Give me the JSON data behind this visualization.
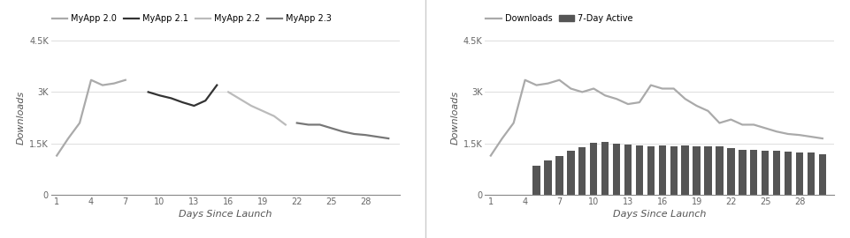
{
  "left": {
    "xlabel": "Days Since Launch",
    "ylabel": "Downloads",
    "ylim": [
      0,
      4500
    ],
    "yticks": [
      0,
      1500,
      3000,
      4500
    ],
    "ytick_labels": [
      "0",
      "1.5K",
      "3K",
      "4.5K"
    ],
    "xticks": [
      1,
      4,
      7,
      10,
      13,
      16,
      19,
      22,
      25,
      28
    ],
    "series": [
      {
        "label": "MyApp 2.0",
        "color": "#aaaaaa",
        "x": [
          1,
          2,
          3,
          4,
          5,
          6,
          7
        ],
        "y": [
          1150,
          1650,
          2100,
          3350,
          3200,
          3250,
          3350
        ]
      },
      {
        "label": "MyApp 2.1",
        "color": "#333333",
        "x": [
          9,
          10,
          11,
          12,
          13,
          14,
          15
        ],
        "y": [
          3000,
          2900,
          2820,
          2700,
          2600,
          2750,
          3200
        ]
      },
      {
        "label": "MyApp 2.2",
        "color": "#bbbbbb",
        "x": [
          16,
          17,
          18,
          19,
          20,
          21
        ],
        "y": [
          3000,
          2800,
          2600,
          2450,
          2300,
          2050
        ]
      },
      {
        "label": "MyApp 2.3",
        "color": "#777777",
        "x": [
          22,
          23,
          24,
          25,
          26,
          27,
          28,
          29,
          30
        ],
        "y": [
          2100,
          2050,
          2050,
          1950,
          1850,
          1780,
          1750,
          1700,
          1650
        ]
      }
    ]
  },
  "right": {
    "xlabel": "Days Since Launch",
    "ylabel": "Downloads",
    "ylim": [
      0,
      4500
    ],
    "yticks": [
      0,
      1500,
      3000,
      4500
    ],
    "ytick_labels": [
      "0",
      "1.5K",
      "3K",
      "4.5K"
    ],
    "xticks": [
      1,
      4,
      7,
      10,
      13,
      16,
      19,
      22,
      25,
      28
    ],
    "downloads": {
      "label": "Downloads",
      "color": "#aaaaaa",
      "x": [
        1,
        2,
        3,
        4,
        5,
        6,
        7,
        8,
        9,
        10,
        11,
        12,
        13,
        14,
        15,
        16,
        17,
        18,
        19,
        20,
        21,
        22,
        23,
        24,
        25,
        26,
        27,
        28,
        29,
        30
      ],
      "y": [
        1150,
        1650,
        2100,
        3350,
        3200,
        3250,
        3350,
        3100,
        3000,
        3100,
        2900,
        2800,
        2650,
        2700,
        3200,
        3100,
        3100,
        2800,
        2600,
        2450,
        2100,
        2200,
        2050,
        2050,
        1950,
        1850,
        1780,
        1750,
        1700,
        1650
      ]
    },
    "active": {
      "label": "7-Day Active",
      "color": "#555555",
      "x": [
        5,
        6,
        7,
        8,
        9,
        10,
        11,
        12,
        13,
        14,
        15,
        16,
        17,
        18,
        19,
        20,
        21,
        22,
        23,
        24,
        25,
        26,
        27,
        28,
        29,
        30
      ],
      "y": [
        850,
        1000,
        1150,
        1300,
        1400,
        1520,
        1560,
        1490,
        1460,
        1440,
        1420,
        1440,
        1420,
        1440,
        1430,
        1420,
        1430,
        1370,
        1330,
        1310,
        1300,
        1290,
        1270,
        1250,
        1230,
        1200
      ]
    }
  },
  "background_color": "#ffffff",
  "grid_color": "#d8d8d8",
  "line_width": 1.6,
  "bar_width": 0.65,
  "divider_color": "#cccccc"
}
